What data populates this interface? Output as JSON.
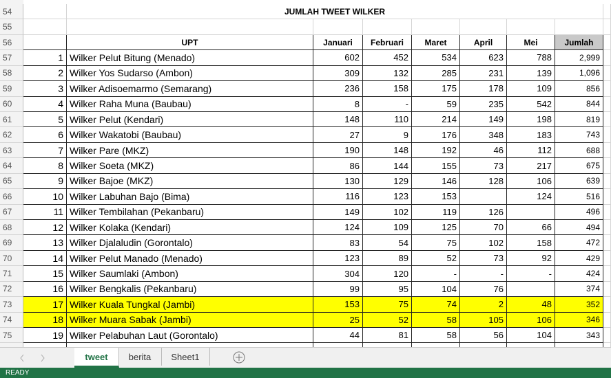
{
  "sheet": {
    "title": "JUMLAH TWEET WILKER",
    "row_numbers": [
      54,
      55,
      56,
      57,
      58,
      59,
      60,
      61,
      62,
      63,
      64,
      65,
      66,
      67,
      68,
      69,
      70,
      71,
      72,
      73,
      74,
      75
    ],
    "table": {
      "header": [
        "UPT",
        "Januari",
        "Februari",
        "Maret",
        "April",
        "Mei",
        "Jumlah"
      ],
      "rows": [
        [
          1,
          "Wilker Pelut Bitung (Menado)",
          602,
          452,
          534,
          623,
          788,
          "2,999"
        ],
        [
          2,
          "Wilker Yos Sudarso (Ambon)",
          309,
          132,
          285,
          231,
          139,
          "1,096"
        ],
        [
          3,
          "Wilker Adisoemarmo (Semarang)",
          236,
          158,
          175,
          178,
          109,
          856
        ],
        [
          4,
          "Wilker Raha Muna (Baubau)",
          8,
          "-",
          59,
          235,
          542,
          844
        ],
        [
          5,
          "Wilker Pelut (Kendari)",
          148,
          110,
          214,
          149,
          198,
          819
        ],
        [
          6,
          "Wilker Wakatobi (Baubau)",
          27,
          9,
          176,
          348,
          183,
          743
        ],
        [
          7,
          "Wilker Pare (MKZ)",
          190,
          148,
          192,
          46,
          112,
          688
        ],
        [
          8,
          "Wilker Soeta (MKZ)",
          86,
          144,
          155,
          73,
          217,
          675
        ],
        [
          9,
          "Wilker Bajoe (MKZ)",
          130,
          129,
          146,
          128,
          106,
          639
        ],
        [
          10,
          "Wilker Labuhan Bajo (Bima)",
          116,
          123,
          153,
          null,
          124,
          516
        ],
        [
          11,
          "Wilker Tembilahan (Pekanbaru)",
          149,
          102,
          119,
          126,
          null,
          496
        ],
        [
          12,
          "Wilker Kolaka (Kendari)",
          124,
          109,
          125,
          70,
          66,
          494
        ],
        [
          13,
          "Wilker Djalaludin (Gorontalo)",
          83,
          54,
          75,
          102,
          158,
          472
        ],
        [
          14,
          "Wilker Pelut Manado (Menado)",
          123,
          89,
          52,
          73,
          92,
          429
        ],
        [
          15,
          "Wilker Saumlaki (Ambon)",
          304,
          120,
          "-",
          "-",
          "-",
          424
        ],
        [
          16,
          "Wilker Bengkalis (Pekanbaru)",
          99,
          95,
          104,
          76,
          null,
          374
        ],
        [
          17,
          "Wilker Kuala Tungkal (Jambi)",
          153,
          75,
          74,
          2,
          48,
          352
        ],
        [
          18,
          "Wilker Muara Sabak (Jambi)",
          25,
          52,
          58,
          105,
          106,
          346
        ],
        [
          19,
          "Wilker Pelabuhan Laut (Gorontalo)",
          44,
          81,
          58,
          56,
          104,
          343
        ]
      ]
    },
    "tabs": [
      "tweet",
      "berita",
      "Sheet1"
    ],
    "status": "READY"
  }
}
